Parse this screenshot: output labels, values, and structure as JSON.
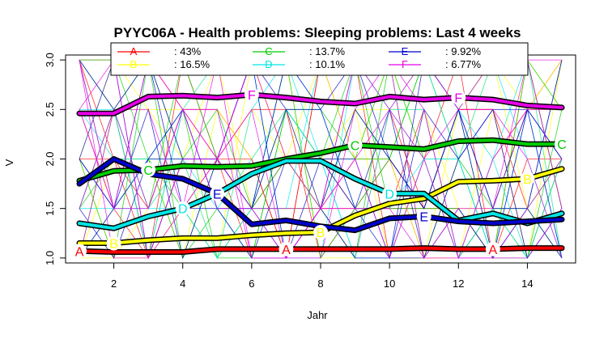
{
  "chart_data": {
    "type": "line",
    "title": "PYYC06A - Health problems: Sleeping problems: Last 4 weeks",
    "xlabel": "Jahr",
    "ylabel": "V",
    "xlim": [
      0.6,
      15.4
    ],
    "ylim": [
      0.95,
      3.05
    ],
    "x_ticks": [
      2,
      4,
      6,
      8,
      10,
      12,
      14
    ],
    "y_ticks": [
      1.0,
      1.5,
      2.0,
      2.5,
      3.0
    ],
    "y_tick_labels": [
      "1.0",
      "1.5",
      "2.0",
      "2.5",
      "3.0"
    ],
    "grid": false,
    "legend_position": "top",
    "x": [
      1,
      2,
      3,
      4,
      5,
      6,
      7,
      8,
      9,
      10,
      11,
      12,
      13,
      14,
      15
    ],
    "series": [
      {
        "name": "A",
        "share": ": 43%",
        "color": "#ff0000",
        "values": [
          1.07,
          1.06,
          1.06,
          1.06,
          1.09,
          1.09,
          1.09,
          1.09,
          1.09,
          1.09,
          1.1,
          1.09,
          1.09,
          1.1,
          1.1
        ],
        "marker_x": [
          1,
          7,
          13
        ]
      },
      {
        "name": "B",
        "share": ": 16.5%",
        "color": "#ffff00",
        "values": [
          1.15,
          1.15,
          1.18,
          1.2,
          1.2,
          1.23,
          1.25,
          1.26,
          1.43,
          1.55,
          1.6,
          1.77,
          1.78,
          1.8,
          1.9
        ],
        "marker_x": [
          2,
          8,
          14
        ]
      },
      {
        "name": "C",
        "share": ": 13.7%",
        "color": "#00cc00",
        "values": [
          1.78,
          1.88,
          1.89,
          1.93,
          1.92,
          1.93,
          2.0,
          2.06,
          2.14,
          2.12,
          2.1,
          2.18,
          2.19,
          2.15,
          2.15
        ],
        "marker_x": [
          3,
          9,
          15
        ]
      },
      {
        "name": "D",
        "share": ": 10.1%",
        "color": "#00e5e5",
        "values": [
          1.35,
          1.3,
          1.42,
          1.5,
          1.65,
          1.85,
          1.98,
          1.98,
          1.8,
          1.65,
          1.65,
          1.38,
          1.45,
          1.35,
          1.45
        ],
        "marker_x": [
          4,
          10
        ]
      },
      {
        "name": "E",
        "share": ": 9.92%",
        "color": "#0000cc",
        "values": [
          1.75,
          2.0,
          1.85,
          1.8,
          1.65,
          1.34,
          1.38,
          1.32,
          1.28,
          1.4,
          1.42,
          1.37,
          1.35,
          1.37,
          1.39
        ],
        "marker_x": [
          5,
          11
        ]
      },
      {
        "name": "F",
        "share": ": 6.77%",
        "color": "#e600e6",
        "values": [
          2.46,
          2.46,
          2.63,
          2.64,
          2.62,
          2.65,
          2.62,
          2.58,
          2.56,
          2.63,
          2.6,
          2.62,
          2.6,
          2.54,
          2.52
        ],
        "marker_x": [
          6,
          12
        ]
      }
    ]
  }
}
